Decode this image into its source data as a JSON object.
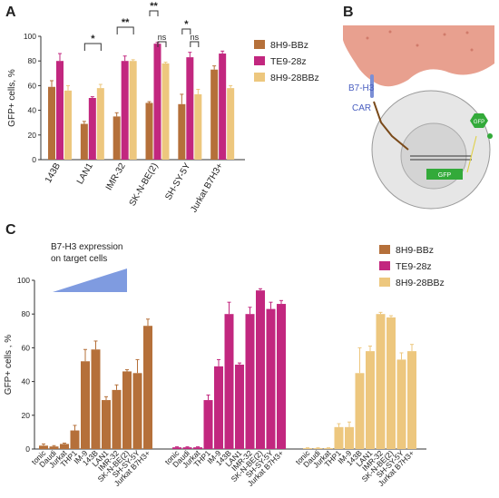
{
  "panels": {
    "a": "A",
    "b": "B",
    "c": "C"
  },
  "colors": {
    "8H9-BBz": "#b5703a",
    "TE9-28z": "#c2277f",
    "8H9-28BBz": "#edc77e",
    "membrane": "#e8a08f",
    "receptor": "#7b8fd6",
    "gfp": "#33aa3a"
  },
  "diagram_b": {
    "b7h3_label": "B7-H3",
    "car_label": "CAR",
    "gfp_label": "GFP",
    "gfp_small_label": "GFP"
  },
  "panel_c_annotation": {
    "line1": "B7-H3 expression",
    "line2": "on target cells"
  },
  "chart_data": [
    {
      "type": "bar",
      "ylabel": "GFP+ cells, %",
      "ylim": [
        0,
        100
      ],
      "yticks": [
        0,
        20,
        40,
        60,
        80,
        100
      ],
      "categories": [
        "143B",
        "LAN1",
        "IMR-32",
        "SK-N-BE(2)",
        "SH-SY-5Y",
        "Jurkat B7H3+"
      ],
      "series": [
        {
          "name": "8H9-BBz",
          "values": [
            59,
            29,
            35,
            46,
            45,
            73
          ],
          "errors": [
            5,
            2,
            3,
            1,
            8,
            3
          ]
        },
        {
          "name": "TE9-28z",
          "values": [
            80,
            50,
            80,
            94,
            83,
            86
          ],
          "errors": [
            6,
            1,
            4,
            1,
            4,
            2
          ]
        },
        {
          "name": "8H9-28BBz",
          "values": [
            56,
            58,
            80,
            78,
            53,
            58
          ],
          "errors": [
            4,
            3,
            1,
            1,
            4,
            2
          ]
        }
      ],
      "significance": [
        {
          "category": "LAN1",
          "label": "*"
        },
        {
          "category": "IMR-32",
          "label": "**"
        },
        {
          "category": "SK-N-BE(2)",
          "label": "**"
        },
        {
          "category": "SK-N-BE(2)",
          "label": "ns"
        },
        {
          "category": "SH-SY-5Y",
          "label": "*"
        },
        {
          "category": "SH-SY-5Y",
          "label": "ns"
        }
      ],
      "legend": [
        "8H9-BBz",
        "TE9-28z",
        "8H9-28BBz"
      ],
      "legend_position": "right"
    },
    {
      "type": "bar",
      "ylabel": "GFP+ cells    , %",
      "ylim": [
        0,
        100
      ],
      "yticks": [
        0,
        20,
        40,
        60,
        80,
        100
      ],
      "categories": [
        "tonic",
        "Daudi",
        "Jurkat",
        "THP1",
        "IM-9",
        "143B",
        "LAN1",
        "IMR-32",
        "SK-N-BE(2)",
        "SH-SY-5Y",
        "Jurkat B7H3+"
      ],
      "groups": [
        {
          "name": "8H9-BBz",
          "values": [
            2,
            1.5,
            3,
            11,
            52,
            59,
            29,
            35,
            46,
            45,
            73
          ],
          "errors": [
            1,
            0.5,
            0.5,
            3,
            7,
            5,
            2,
            3,
            1,
            8,
            4
          ]
        },
        {
          "name": "TE9-28z",
          "categories": [
            "tonic",
            "Daudi",
            "Jurkat",
            "THP1",
            "IM-9",
            "143B",
            "LAN1",
            "IMR-32",
            "SK-N-BE(2)",
            "SH-SY-5Y",
            "Jurkat B7H3+"
          ],
          "values": [
            1,
            1,
            1,
            29,
            49,
            80,
            50,
            80,
            94,
            83,
            86
          ],
          "errors": [
            0.3,
            0.3,
            0.3,
            3,
            4,
            7,
            1,
            4,
            1,
            4,
            2
          ]
        },
        {
          "name": "8H9-28BBz",
          "categories": [
            "tonic",
            "Daudi",
            "Jurkat",
            "THP1",
            "IM-9",
            "143B",
            "LAN1",
            "IMR-32",
            "SK-N-BE(2)",
            "SH-SY-5Y",
            "Jurkat B7H3+"
          ],
          "values": [
            0.5,
            0.5,
            0.5,
            13,
            13,
            45,
            58,
            80,
            78,
            53,
            58
          ],
          "errors": [
            0.2,
            0.2,
            0.2,
            2,
            3,
            15,
            3,
            1,
            1,
            4,
            4
          ]
        }
      ],
      "legend": [
        "8H9-BBz",
        "TE9-28z",
        "8H9-28BBz"
      ],
      "legend_position": "top-right"
    }
  ]
}
